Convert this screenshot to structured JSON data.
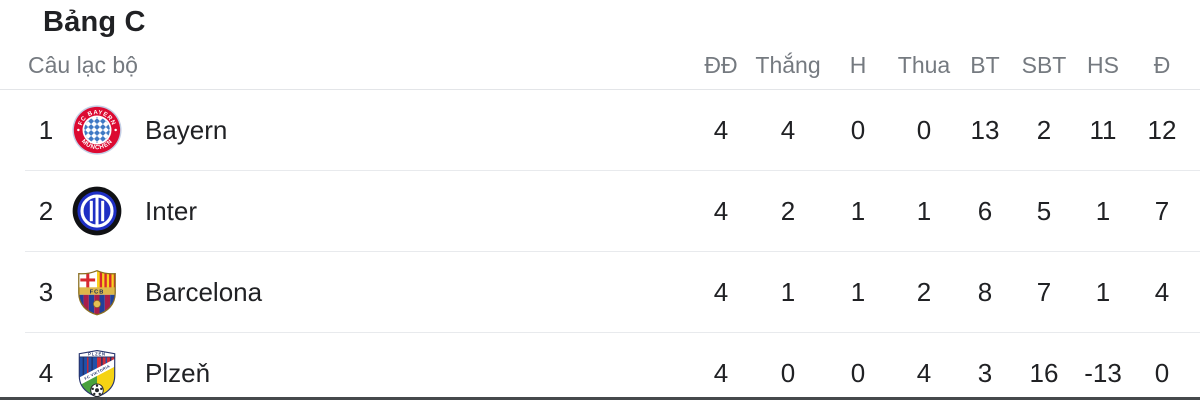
{
  "panel": {
    "title": "Bảng C"
  },
  "table": {
    "club_header": "Câu lạc bộ",
    "stat_headers": [
      "ĐĐ",
      "Thắng",
      "H",
      "Thua",
      "BT",
      "SBT",
      "HS",
      "Đ"
    ],
    "rows": [
      {
        "rank": "1",
        "team": "Bayern",
        "badge_icon": "bayern-crest-icon",
        "stats": [
          "4",
          "4",
          "0",
          "0",
          "13",
          "2",
          "11",
          "12"
        ]
      },
      {
        "rank": "2",
        "team": "Inter",
        "badge_icon": "inter-crest-icon",
        "stats": [
          "4",
          "2",
          "1",
          "1",
          "6",
          "5",
          "1",
          "7"
        ]
      },
      {
        "rank": "3",
        "team": "Barcelona",
        "badge_icon": "barcelona-crest-icon",
        "stats": [
          "4",
          "1",
          "1",
          "2",
          "8",
          "7",
          "1",
          "4"
        ]
      },
      {
        "rank": "4",
        "team": "Plzeň",
        "badge_icon": "plzen-crest-icon",
        "stats": [
          "4",
          "0",
          "0",
          "4",
          "3",
          "16",
          "-13",
          "0"
        ]
      }
    ]
  },
  "colors": {
    "text": "#202124",
    "header_text": "#757a80",
    "divider": "#e8eaed",
    "bottom_bar": "#46494c",
    "bayern_red": "#dc0a32",
    "inter_blue": "#1f2fc4",
    "barcelona_blue": "#20419a",
    "barcelona_garnet": "#a81e4a",
    "plzen_blue": "#2050a8",
    "plzen_red": "#cf2e3a"
  }
}
